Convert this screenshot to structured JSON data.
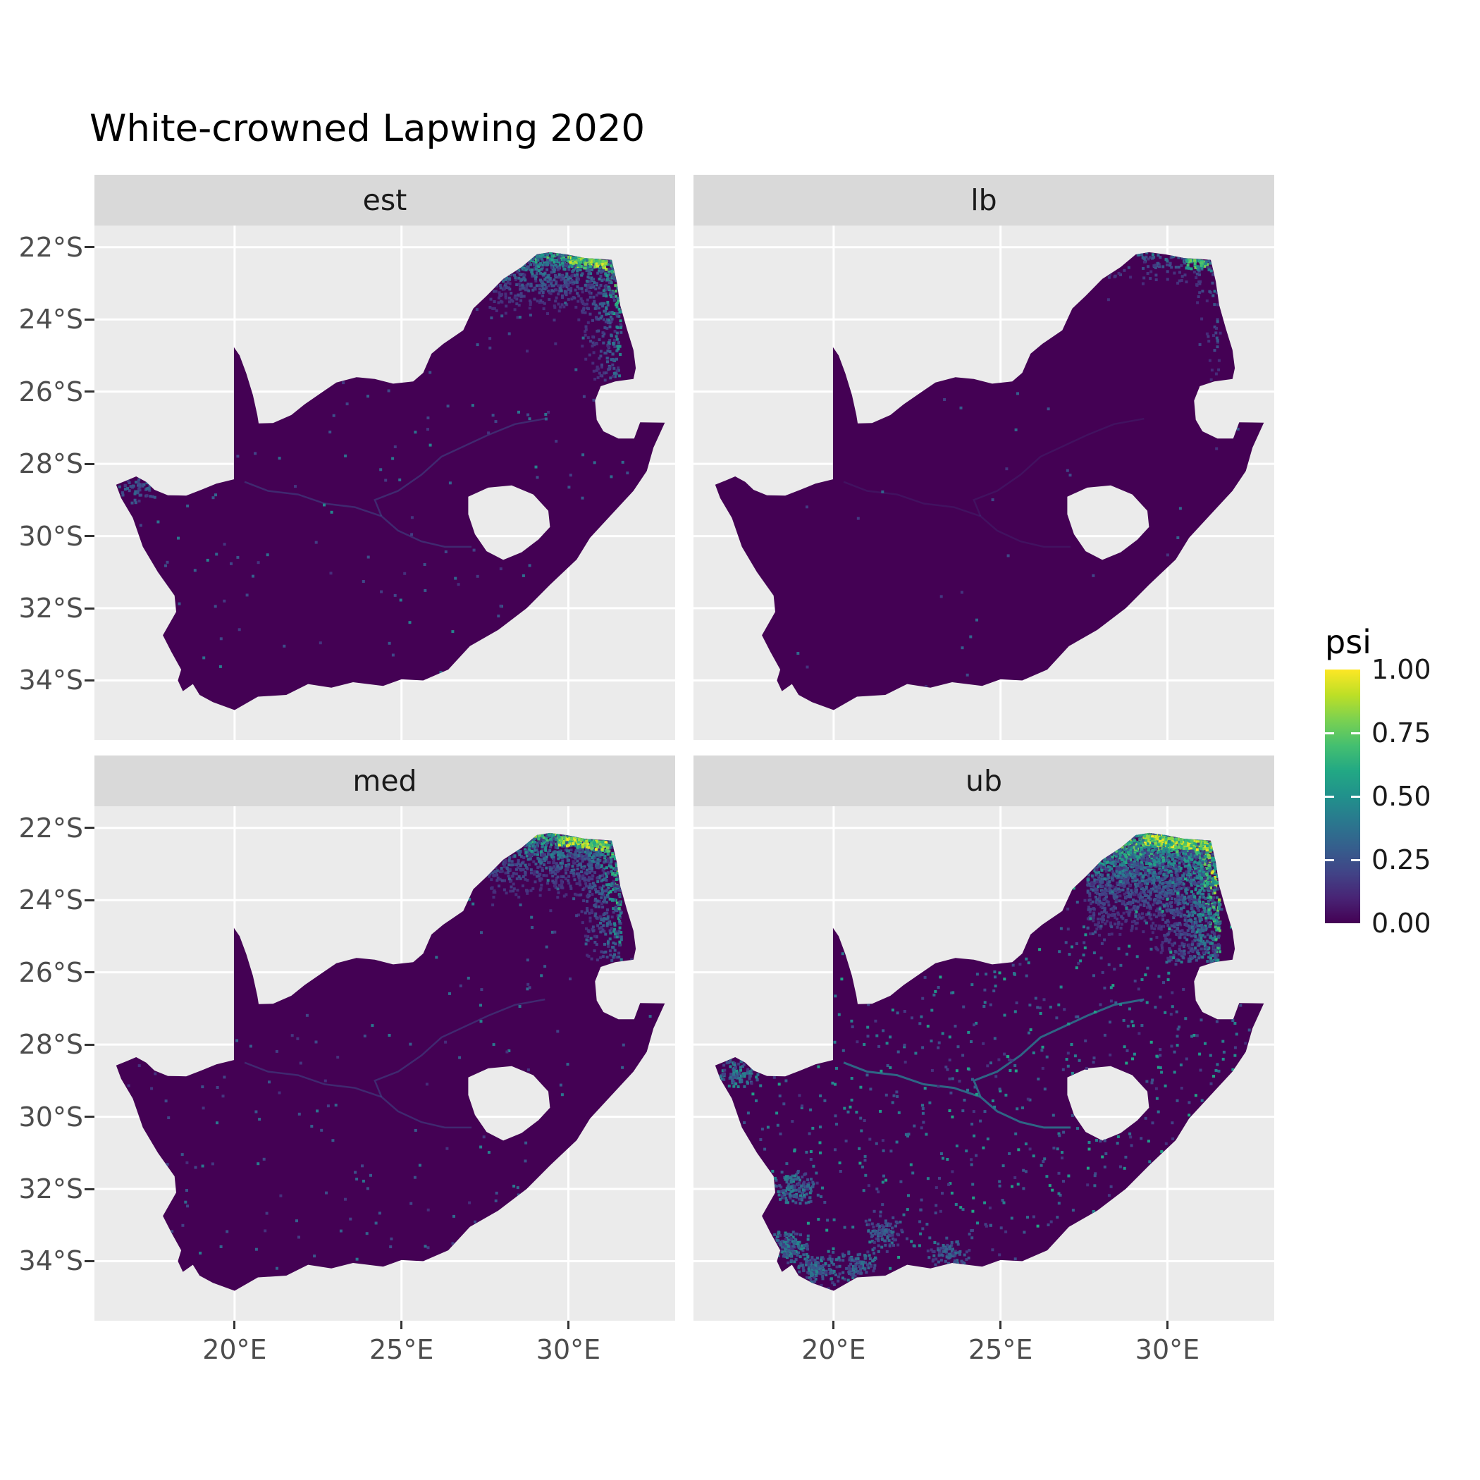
{
  "title": "White-crowned Lapwing 2020",
  "facets": [
    {
      "id": "est",
      "label": "est"
    },
    {
      "id": "lb",
      "label": "lb"
    },
    {
      "id": "med",
      "label": "med"
    },
    {
      "id": "ub",
      "label": "ub"
    }
  ],
  "axes": {
    "x": {
      "tick_labels": [
        "20°E",
        "25°E",
        "30°E"
      ],
      "tick_values": [
        20,
        25,
        30
      ]
    },
    "y": {
      "tick_labels": [
        "22°S",
        "24°S",
        "26°S",
        "28°S",
        "30°S",
        "32°S",
        "34°S"
      ],
      "tick_values": [
        -22,
        -24,
        -26,
        -28,
        -30,
        -32,
        -34
      ]
    }
  },
  "legend": {
    "title": "psi",
    "tick_labels": [
      "1.00",
      "0.75",
      "0.50",
      "0.25",
      "0.00"
    ],
    "tick_values": [
      1,
      0.75,
      0.5,
      0.25,
      0
    ]
  },
  "colors": {
    "background": "#FFFFFF",
    "panel_background": "#EBEBEB",
    "strip_background": "#D9D9D9",
    "gridline": "#FFFFFF",
    "map_low": "#440154",
    "axis_text": "#4D4D4D",
    "tick_mark": "#333333",
    "title_text": "#000000",
    "viridis_stops": [
      "#440154",
      "#482475",
      "#414487",
      "#355F8D",
      "#2A788E",
      "#21918C",
      "#22A884",
      "#44BF70",
      "#7AD151",
      "#BDDF26",
      "#FDE725"
    ]
  },
  "chart_data": {
    "type": "heatmap",
    "title": "White-crowned Lapwing 2020",
    "region": "South Africa (Lesotho and Eswatini shown as holes / notches, no data)",
    "fill_variable": "psi",
    "fill_scale": {
      "palette": "viridis",
      "limits": [
        0,
        1
      ],
      "breaks": [
        0,
        0.25,
        0.5,
        0.75,
        1
      ],
      "break_labels": [
        "0.00",
        "0.25",
        "0.50",
        "0.75",
        "1.00"
      ]
    },
    "facet_variable_values": [
      "est",
      "lb",
      "med",
      "ub"
    ],
    "x_axis": {
      "label": "",
      "breaks": [
        20,
        25,
        30
      ],
      "break_labels": [
        "20°E",
        "25°E",
        "30°E"
      ],
      "range": [
        15.8,
        33.2
      ]
    },
    "y_axis": {
      "label": "",
      "breaks": [
        -22,
        -24,
        -26,
        -28,
        -30,
        -32,
        -34
      ],
      "break_labels": [
        "22°S",
        "24°S",
        "26°S",
        "28°S",
        "30°S",
        "32°S",
        "34°S"
      ],
      "range": [
        -35.65,
        -21.4
      ]
    },
    "grid": "major gridlines white on grey panel",
    "legend_position": "right",
    "facet_summaries": [
      {
        "facet": "est",
        "typical_psi": 0.02,
        "hotspot_region": "far northeast (Limpopo valley / Kruger, ~29-31.5E, 22-25S)",
        "hotspot_max_psi": 1.0
      },
      {
        "facet": "lb",
        "typical_psi": 0.01,
        "hotspot_region": "small far-northeast cluster (~30.5-31.3E, 22.2-24.5S)",
        "hotspot_max_psi": 0.7
      },
      {
        "facet": "med",
        "typical_psi": 0.02,
        "hotspot_region": "far northeast (Limpopo valley / Kruger), yellow along northern border",
        "hotspot_max_psi": 1.0
      },
      {
        "facet": "ub",
        "typical_psi": 0.06,
        "hotspot_region": "northeast Limpopo/Kruger strong, plus widespread low teal speckle over whole country and south/west coasts",
        "hotspot_max_psi": 1.0
      }
    ]
  }
}
